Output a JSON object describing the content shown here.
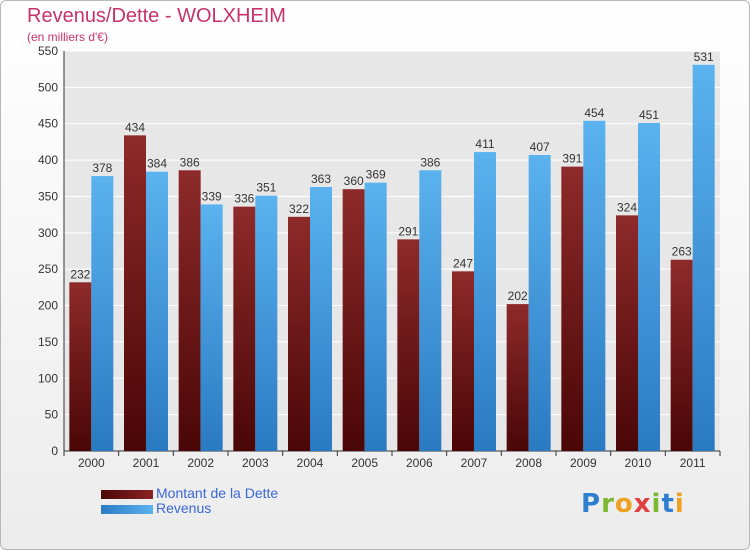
{
  "chart_data": {
    "type": "bar",
    "title": "Revenus/Dette - WOLXHEIM",
    "subtitle": "(en milliers d'€)",
    "categories": [
      "2000",
      "2001",
      "2002",
      "2003",
      "2004",
      "2005",
      "2006",
      "2007",
      "2008",
      "2009",
      "2010",
      "2011"
    ],
    "series": [
      {
        "name": "Montant de la Dette",
        "color": "#7a1c1c",
        "values": [
          232,
          434,
          386,
          336,
          322,
          360,
          291,
          247,
          202,
          391,
          324,
          263
        ]
      },
      {
        "name": "Revenus",
        "color": "#3a9be0",
        "values": [
          378,
          384,
          339,
          351,
          363,
          369,
          386,
          411,
          407,
          454,
          451,
          531
        ]
      }
    ],
    "ylim": [
      0,
      550
    ],
    "yticks": [
      0,
      50,
      100,
      150,
      200,
      250,
      300,
      350,
      400,
      450,
      500,
      550
    ],
    "grid": true,
    "legend_position": "bottom-left"
  },
  "logo": {
    "letters": [
      "P",
      "r",
      "o",
      "x",
      "i",
      "t",
      "i"
    ],
    "colors": [
      "#2f7fd0",
      "#7ab830",
      "#f0a020",
      "#e04040",
      "#7ab830",
      "#2f7fd0",
      "#f0a020"
    ]
  }
}
